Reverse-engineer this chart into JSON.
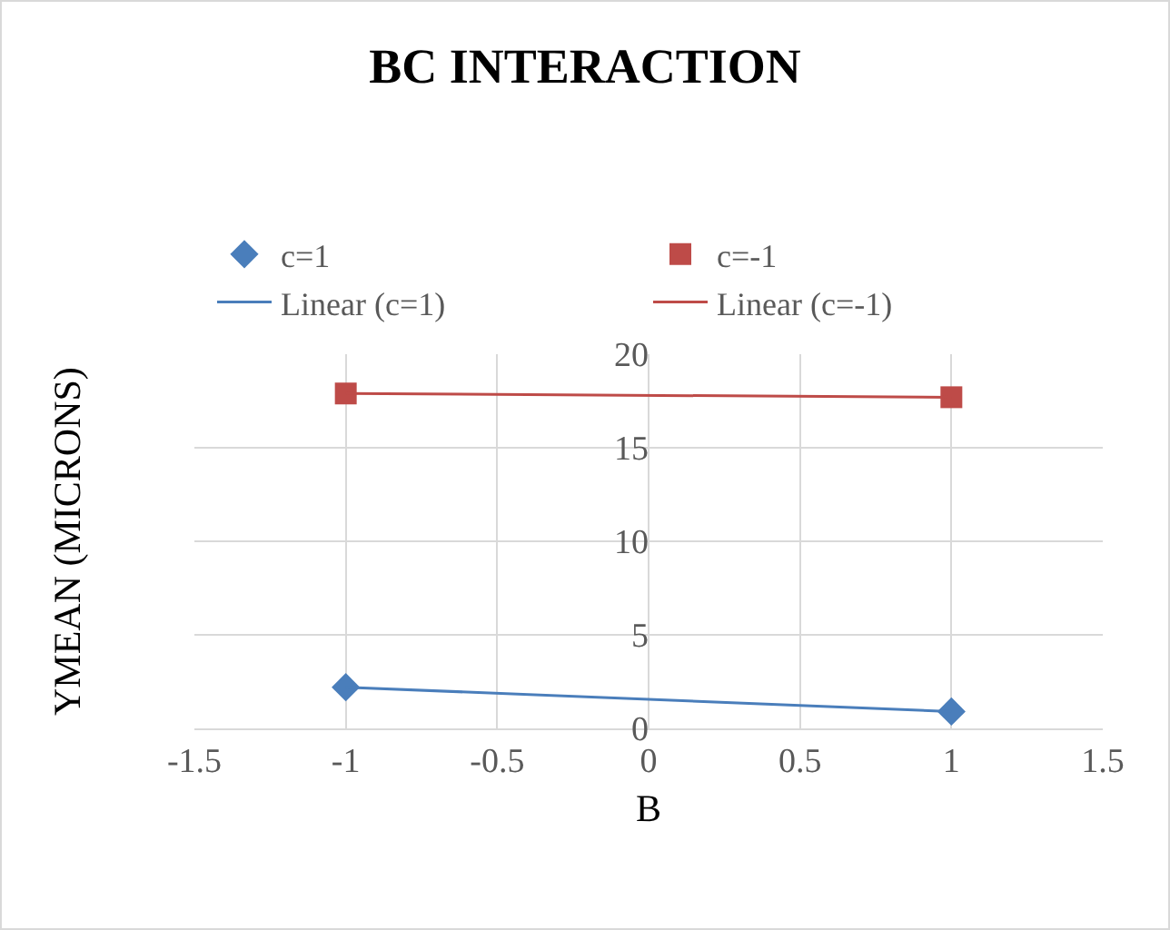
{
  "chart_data": {
    "type": "scatter",
    "title": "BC INTERACTION",
    "xlabel": "B",
    "ylabel": "YMEAN (MICRONS)",
    "x": [
      -1,
      1
    ],
    "xlim": [
      -1.5,
      1.5
    ],
    "xticks": [
      -1.5,
      -1,
      -0.5,
      0,
      0.5,
      1,
      1.5
    ],
    "ylim": [
      0,
      20
    ],
    "yticks": [
      0,
      5,
      10,
      15,
      20
    ],
    "grid": true,
    "legend": "top",
    "series": [
      {
        "name": "c=1",
        "marker": "diamond",
        "color": "#4a7ebb",
        "values": [
          2.2,
          0.9
        ]
      },
      {
        "name": "c=-1",
        "marker": "square",
        "color": "#be4b48",
        "values": [
          17.9,
          17.7
        ]
      },
      {
        "name": "Linear (c=1)",
        "type": "line",
        "marker": "none",
        "color": "#4a7ebb",
        "values": [
          2.2,
          0.9
        ]
      },
      {
        "name": "Linear (c=-1)",
        "type": "line",
        "marker": "none",
        "color": "#be4b48",
        "values": [
          17.9,
          17.7
        ]
      }
    ]
  }
}
